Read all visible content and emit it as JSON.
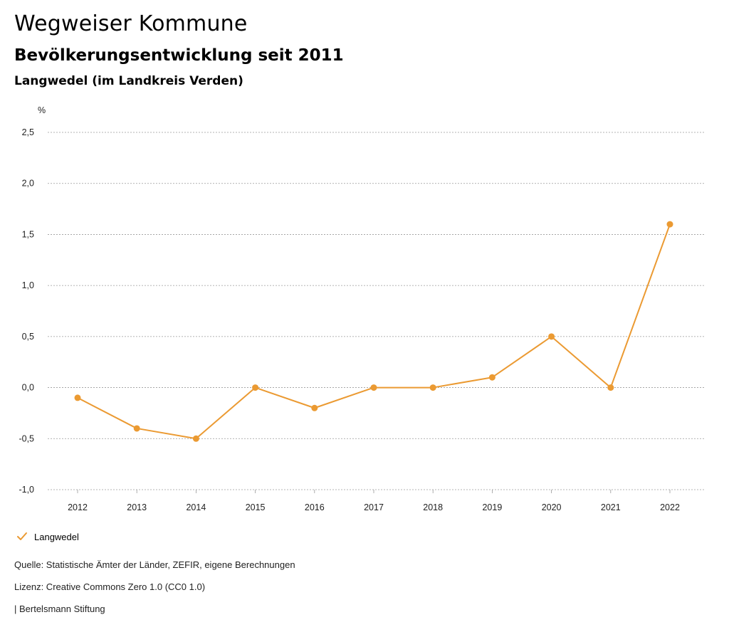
{
  "header": {
    "title": "Wegweiser Kommune",
    "subtitle": "Bevölkerungsentwicklung seit 2011",
    "region": "Langwedel (im Landkreis Verden)"
  },
  "footer": {
    "source": "Quelle: Statistische Ämter der Länder, ZEFIR, eigene Berechnungen",
    "license": "Lizenz: Creative Commons Zero 1.0 (CC0 1.0)",
    "brand": "| Bertelsmann Stiftung"
  },
  "colors": {
    "series": "#eb9a32",
    "grid": "#9a9a9a"
  },
  "chart_data": {
    "type": "line",
    "ylabel": "%",
    "ylim": [
      -1.0,
      2.5
    ],
    "yticks": [
      "-1,0",
      "-0,5",
      "0,0",
      "0,5",
      "1,0",
      "1,5",
      "2,0",
      "2,5"
    ],
    "ytick_values": [
      -1.0,
      -0.5,
      0.0,
      0.5,
      1.0,
      1.5,
      2.0,
      2.5
    ],
    "categories": [
      "2012",
      "2013",
      "2014",
      "2015",
      "2016",
      "2017",
      "2018",
      "2019",
      "2020",
      "2021",
      "2022"
    ],
    "series": [
      {
        "name": "Langwedel",
        "values": [
          -0.1,
          -0.4,
          -0.5,
          0.0,
          -0.2,
          0.0,
          0.0,
          0.1,
          0.5,
          0.0,
          1.6
        ]
      }
    ],
    "grid": true,
    "legend_position": "bottom-left"
  }
}
